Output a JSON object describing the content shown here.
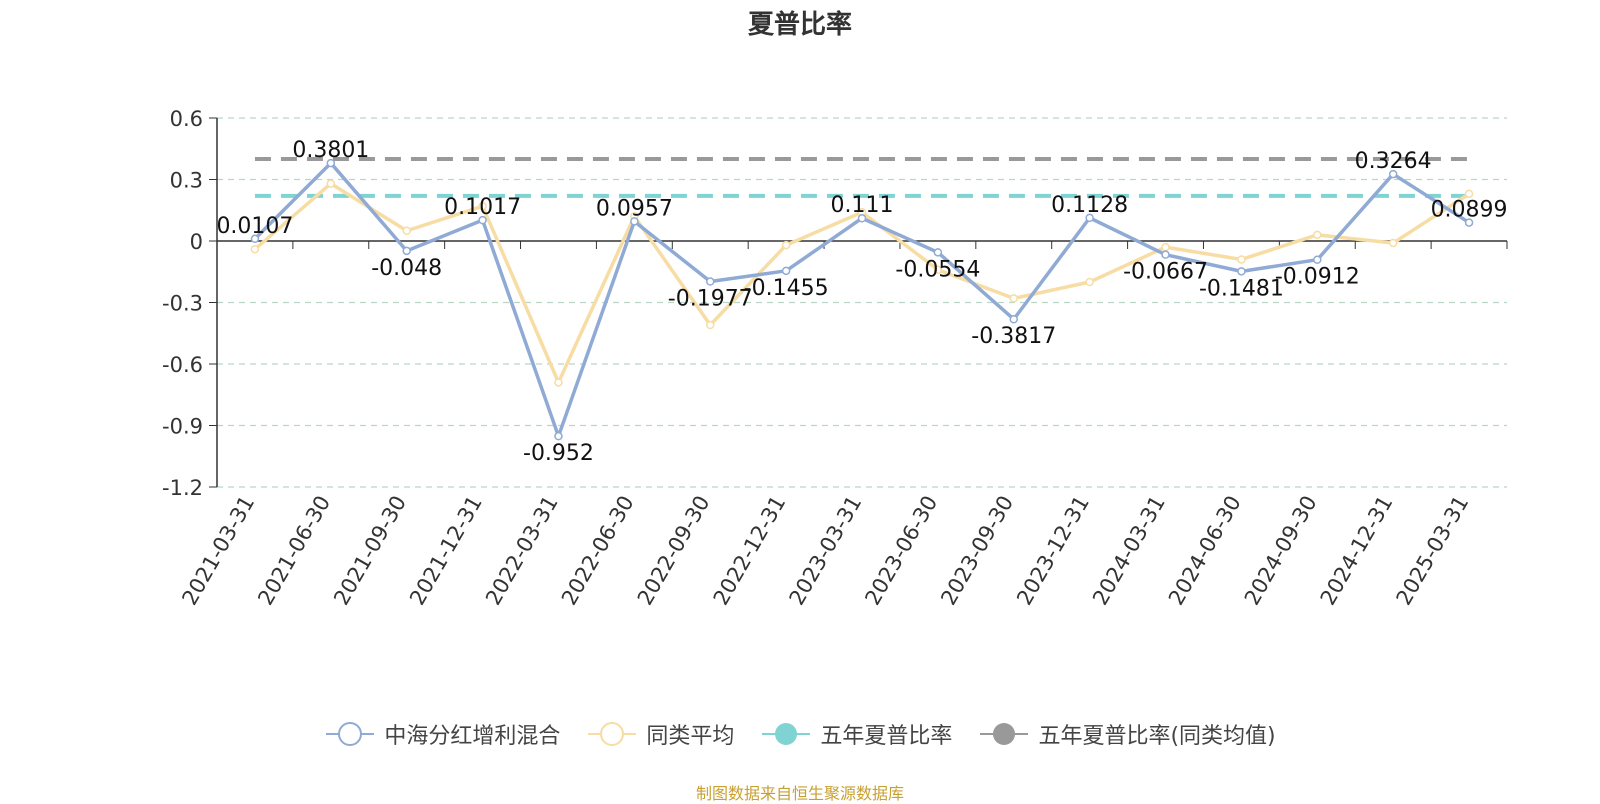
{
  "chart_data": {
    "type": "line",
    "title": "夏普比率",
    "categories": [
      "2021-03-31",
      "2021-06-30",
      "2021-09-30",
      "2021-12-31",
      "2022-03-31",
      "2022-06-30",
      "2022-09-30",
      "2022-12-31",
      "2023-03-31",
      "2023-06-30",
      "2023-09-30",
      "2023-12-31",
      "2024-03-31",
      "2024-06-30",
      "2024-09-30",
      "2024-12-31",
      "2025-03-31"
    ],
    "ylim": [
      -1.2,
      0.6
    ],
    "yticks": [
      "0.6",
      "0.3",
      "0",
      "-0.3",
      "-0.6",
      "-0.9",
      "-1.2"
    ],
    "grid": true,
    "legend_position": "bottom",
    "series": [
      {
        "name": "中海分红增利混合",
        "color": "#8faad4",
        "values": [
          0.0107,
          0.3801,
          -0.048,
          0.1017,
          -0.952,
          0.0957,
          -0.1977,
          -0.1455,
          0.111,
          -0.0554,
          -0.3817,
          0.1128,
          -0.0667,
          -0.1481,
          -0.0912,
          0.3264,
          0.0899
        ],
        "labels": [
          "0.0107",
          "0.3801",
          "-0.048",
          "0.1017",
          "-0.952",
          "0.0957",
          "-0.1977",
          "-0.1455",
          "0.111",
          "-0.0554",
          "-0.3817",
          "0.1128",
          "-0.0667",
          "-0.1481",
          "-0.0912",
          "0.3264",
          "0.0899"
        ]
      },
      {
        "name": "同类平均",
        "color": "#f7dca3",
        "values": [
          -0.04,
          0.28,
          0.05,
          0.17,
          -0.69,
          0.12,
          -0.41,
          -0.02,
          0.14,
          -0.14,
          -0.28,
          -0.2,
          -0.03,
          -0.09,
          0.03,
          -0.01,
          0.23
        ]
      }
    ],
    "reference_lines": [
      {
        "name": "五年夏普比率",
        "value": 0.22,
        "color": "#7fd3d3"
      },
      {
        "name": "五年夏普比率(同类均值)",
        "value": 0.4,
        "color": "#999999"
      }
    ],
    "source": "制图数据来自恒生聚源数据库",
    "source_color": "#c8a032"
  }
}
